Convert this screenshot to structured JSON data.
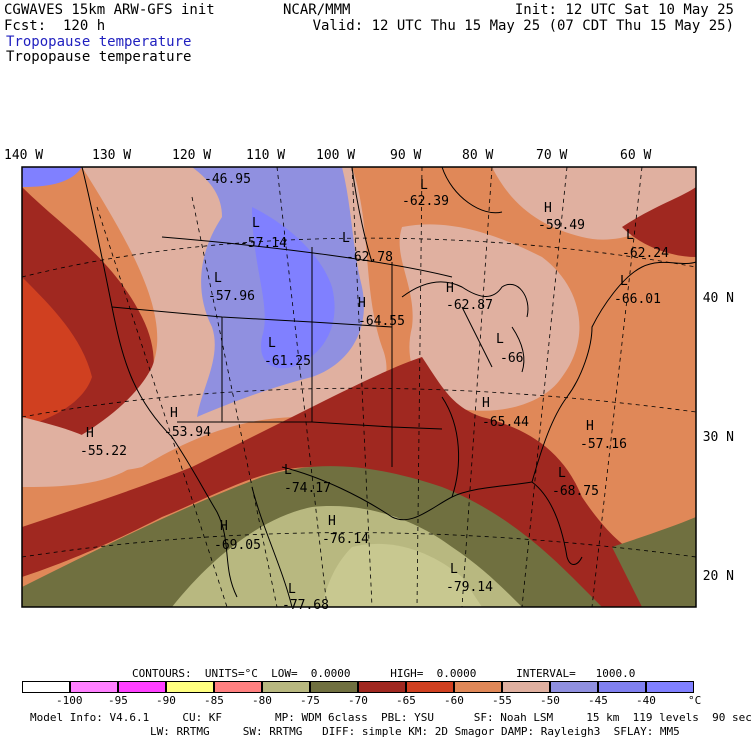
{
  "header": {
    "model": "CGWAVES 15km ARW-GFS init",
    "fcst": "Fcst:  120 h",
    "center": "NCAR/MMM",
    "init": "Init: 12 UTC Sat 10 May 25",
    "valid": "Valid: 12 UTC Thu 15 May 25 (07 CDT Thu 15 May 25)",
    "field1": "Tropopause temperature",
    "field2": "Tropopause temperature"
  },
  "lon_labels": [
    "140 W",
    "130 W",
    "120 W",
    "110 W",
    "100 W",
    "90 W",
    "80 W",
    "70 W",
    "60 W"
  ],
  "lat_labels": [
    "40 N",
    "30 N",
    "20 N"
  ],
  "extrema": [
    {
      "type": "",
      "value": "-46.95"
    },
    {
      "type": "L",
      "value": "-62.39"
    },
    {
      "type": "H",
      "value": "-59.49"
    },
    {
      "type": "L",
      "value": "-57.14"
    },
    {
      "type": "L",
      "value": "-62.78"
    },
    {
      "type": "L",
      "value": "-62.24"
    },
    {
      "type": "L",
      "value": "-57.96"
    },
    {
      "type": "H",
      "value": "-62.87"
    },
    {
      "type": "L",
      "value": "-66.01"
    },
    {
      "type": "H",
      "value": "-64.55"
    },
    {
      "type": "L",
      "value": "-61.25"
    },
    {
      "type": "L",
      "value": "-66"
    },
    {
      "type": "H",
      "value": "-53.94"
    },
    {
      "type": "H",
      "value": "-55.22"
    },
    {
      "type": "H",
      "value": "-65.44"
    },
    {
      "type": "H",
      "value": "-57.16"
    },
    {
      "type": "L",
      "value": "-74.17"
    },
    {
      "type": "L",
      "value": "-68.75"
    },
    {
      "type": "H",
      "value": "-69.05"
    },
    {
      "type": "H",
      "value": "-76.14"
    },
    {
      "type": "L",
      "value": "-79.14"
    },
    {
      "type": "L",
      "value": "-77.68"
    }
  ],
  "contours_line": "CONTOURS:  UNITS=°C  LOW=  0.0000      HIGH=  0.0000      INTERVAL=   1000.0",
  "colorbar": {
    "colors": [
      "#ffffff",
      "#ff80ff",
      "#ff40ff",
      "#ffff80",
      "#ff8080",
      "#b8b880",
      "#707040",
      "#a02820",
      "#d04020",
      "#e08858",
      "#e0b0a0",
      "#9090e0",
      "#8080f0",
      "#8080ff",
      "#8888ff"
    ],
    "labels": [
      "-100",
      "-95",
      "-90",
      "-85",
      "-80",
      "-75",
      "-70",
      "-65",
      "-60",
      "-55",
      "-50",
      "-45",
      "-40",
      "°C"
    ]
  },
  "footer": {
    "line1": "Model Info: V4.6.1     CU: KF        MP: WDM 6class  PBL: YSU      SF: Noah LSM     15 km  119 levels  90 sec",
    "line2": "LW: RRTMG     SW: RRTMG   DIFF: simple KM: 2D Smagor DAMP: Rayleigh3  SFLAY: MM5"
  }
}
